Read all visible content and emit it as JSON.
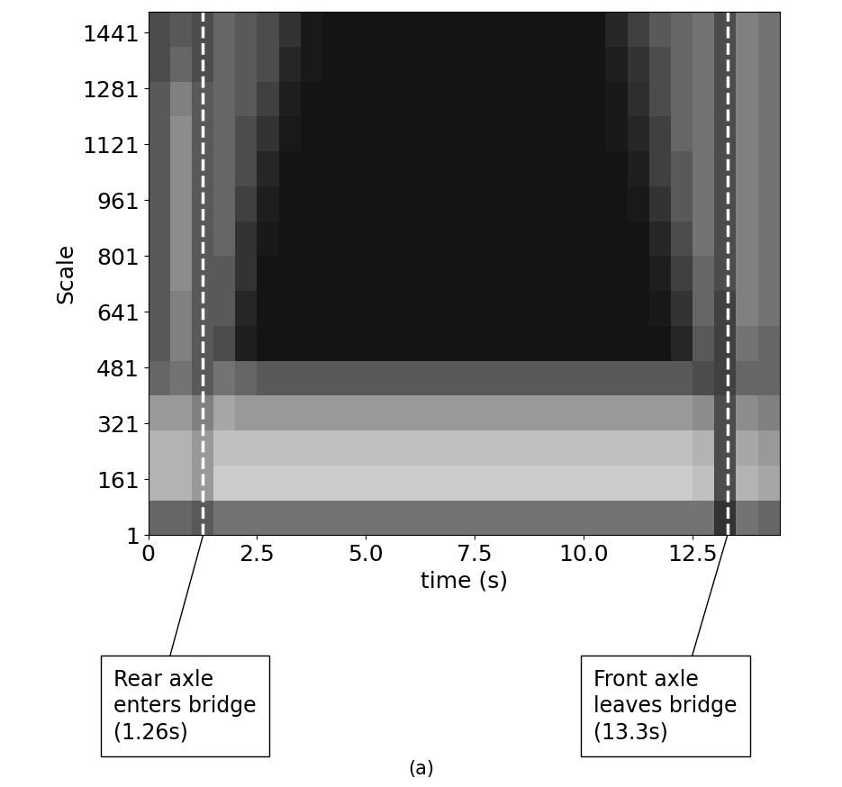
{
  "chart_data": {
    "type": "heatmap",
    "x_label": "time (s)",
    "y_label": "Scale",
    "panel_label": "(a)",
    "xlim": [
      0,
      14.5
    ],
    "ylim": [
      1,
      1501
    ],
    "xticks": [
      0,
      2.5,
      {
        "value": 5,
        "label": "5.0"
      },
      7.5,
      {
        "value": 10,
        "label": "10.0"
      },
      12.5
    ],
    "yticks": [
      1,
      161,
      321,
      481,
      641,
      801,
      961,
      1121,
      1281,
      1441
    ],
    "color": "gray",
    "cell_range": [
      0,
      1
    ],
    "time_edges": [
      0,
      0.5,
      1,
      1.5,
      2,
      2.5,
      3,
      3.5,
      4,
      4.5,
      5,
      5.5,
      6,
      6.5,
      7,
      7.5,
      8,
      8.5,
      9,
      9.5,
      10,
      10.5,
      11,
      11.5,
      12,
      12.5,
      13,
      13.5,
      14,
      14.5
    ],
    "scale_edges": [
      1,
      101,
      201,
      301,
      401,
      501,
      601,
      701,
      801,
      901,
      1001,
      1101,
      1201,
      1301,
      1401,
      1501
    ],
    "cells": [
      [
        0.4,
        0.4,
        0.35,
        0.45,
        0.45,
        0.45,
        0.45,
        0.45,
        0.45,
        0.45,
        0.45,
        0.45,
        0.45,
        0.45,
        0.45,
        0.45,
        0.45,
        0.45,
        0.45,
        0.45,
        0.45,
        0.45,
        0.45,
        0.45,
        0.45,
        0.45,
        0.2,
        0.45,
        0.4
      ],
      [
        0.7,
        0.7,
        0.6,
        0.8,
        0.8,
        0.8,
        0.8,
        0.8,
        0.8,
        0.8,
        0.8,
        0.8,
        0.8,
        0.8,
        0.8,
        0.8,
        0.8,
        0.8,
        0.8,
        0.8,
        0.8,
        0.8,
        0.8,
        0.8,
        0.8,
        0.75,
        0.3,
        0.7,
        0.65
      ],
      [
        0.7,
        0.7,
        0.6,
        0.75,
        0.75,
        0.75,
        0.75,
        0.75,
        0.75,
        0.75,
        0.75,
        0.75,
        0.75,
        0.75,
        0.75,
        0.75,
        0.75,
        0.75,
        0.75,
        0.75,
        0.75,
        0.75,
        0.75,
        0.75,
        0.75,
        0.7,
        0.3,
        0.65,
        0.6
      ],
      [
        0.6,
        0.6,
        0.5,
        0.65,
        0.6,
        0.6,
        0.6,
        0.6,
        0.6,
        0.6,
        0.6,
        0.6,
        0.6,
        0.6,
        0.6,
        0.6,
        0.6,
        0.6,
        0.6,
        0.6,
        0.6,
        0.6,
        0.6,
        0.6,
        0.6,
        0.55,
        0.3,
        0.55,
        0.5
      ],
      [
        0.4,
        0.45,
        0.35,
        0.45,
        0.4,
        0.35,
        0.35,
        0.35,
        0.35,
        0.35,
        0.35,
        0.35,
        0.35,
        0.35,
        0.35,
        0.35,
        0.35,
        0.35,
        0.35,
        0.35,
        0.35,
        0.35,
        0.35,
        0.35,
        0.35,
        0.3,
        0.25,
        0.4,
        0.4
      ],
      [
        0.35,
        0.5,
        0.35,
        0.3,
        0.12,
        0.08,
        0.08,
        0.08,
        0.08,
        0.08,
        0.08,
        0.08,
        0.08,
        0.08,
        0.08,
        0.08,
        0.08,
        0.08,
        0.08,
        0.08,
        0.08,
        0.08,
        0.08,
        0.08,
        0.15,
        0.35,
        0.25,
        0.45,
        0.4
      ],
      [
        0.35,
        0.5,
        0.35,
        0.35,
        0.15,
        0.08,
        0.08,
        0.08,
        0.08,
        0.08,
        0.08,
        0.08,
        0.08,
        0.08,
        0.08,
        0.08,
        0.08,
        0.08,
        0.08,
        0.08,
        0.08,
        0.08,
        0.08,
        0.1,
        0.2,
        0.4,
        0.25,
        0.5,
        0.45
      ],
      [
        0.35,
        0.55,
        0.35,
        0.35,
        0.2,
        0.08,
        0.08,
        0.08,
        0.08,
        0.08,
        0.08,
        0.08,
        0.08,
        0.08,
        0.08,
        0.08,
        0.08,
        0.08,
        0.08,
        0.08,
        0.08,
        0.08,
        0.08,
        0.12,
        0.25,
        0.4,
        0.3,
        0.5,
        0.45
      ],
      [
        0.35,
        0.55,
        0.35,
        0.4,
        0.2,
        0.1,
        0.08,
        0.08,
        0.08,
        0.08,
        0.08,
        0.08,
        0.08,
        0.08,
        0.08,
        0.08,
        0.08,
        0.08,
        0.08,
        0.08,
        0.08,
        0.08,
        0.08,
        0.15,
        0.3,
        0.45,
        0.3,
        0.5,
        0.45
      ],
      [
        0.35,
        0.55,
        0.35,
        0.4,
        0.25,
        0.12,
        0.08,
        0.08,
        0.08,
        0.08,
        0.08,
        0.08,
        0.08,
        0.08,
        0.08,
        0.08,
        0.08,
        0.08,
        0.08,
        0.08,
        0.08,
        0.08,
        0.1,
        0.2,
        0.35,
        0.45,
        0.3,
        0.5,
        0.45
      ],
      [
        0.35,
        0.55,
        0.35,
        0.4,
        0.3,
        0.15,
        0.08,
        0.08,
        0.08,
        0.08,
        0.08,
        0.08,
        0.08,
        0.08,
        0.08,
        0.08,
        0.08,
        0.08,
        0.08,
        0.08,
        0.08,
        0.08,
        0.12,
        0.25,
        0.35,
        0.45,
        0.3,
        0.5,
        0.45
      ],
      [
        0.35,
        0.55,
        0.35,
        0.4,
        0.3,
        0.2,
        0.1,
        0.08,
        0.08,
        0.08,
        0.08,
        0.08,
        0.08,
        0.08,
        0.08,
        0.08,
        0.08,
        0.08,
        0.08,
        0.08,
        0.08,
        0.1,
        0.15,
        0.25,
        0.4,
        0.45,
        0.3,
        0.5,
        0.45
      ],
      [
        0.35,
        0.5,
        0.35,
        0.4,
        0.35,
        0.25,
        0.12,
        0.08,
        0.08,
        0.08,
        0.08,
        0.08,
        0.08,
        0.08,
        0.08,
        0.08,
        0.08,
        0.08,
        0.08,
        0.08,
        0.08,
        0.1,
        0.18,
        0.3,
        0.4,
        0.45,
        0.3,
        0.5,
        0.45
      ],
      [
        0.3,
        0.4,
        0.3,
        0.4,
        0.35,
        0.3,
        0.15,
        0.1,
        0.08,
        0.08,
        0.08,
        0.08,
        0.08,
        0.08,
        0.08,
        0.08,
        0.08,
        0.08,
        0.08,
        0.08,
        0.08,
        0.12,
        0.2,
        0.3,
        0.4,
        0.45,
        0.3,
        0.5,
        0.45
      ],
      [
        0.3,
        0.35,
        0.3,
        0.4,
        0.35,
        0.3,
        0.2,
        0.1,
        0.08,
        0.08,
        0.08,
        0.08,
        0.08,
        0.08,
        0.08,
        0.08,
        0.08,
        0.08,
        0.08,
        0.08,
        0.08,
        0.15,
        0.25,
        0.35,
        0.4,
        0.45,
        0.3,
        0.5,
        0.45
      ]
    ],
    "annotations": [
      {
        "x": 1.26,
        "text": "Rear axle\nenters bridge\n(1.26s)"
      },
      {
        "x": 13.3,
        "text": "Front axle\nleaves bridge\n(13.3s)"
      }
    ]
  }
}
